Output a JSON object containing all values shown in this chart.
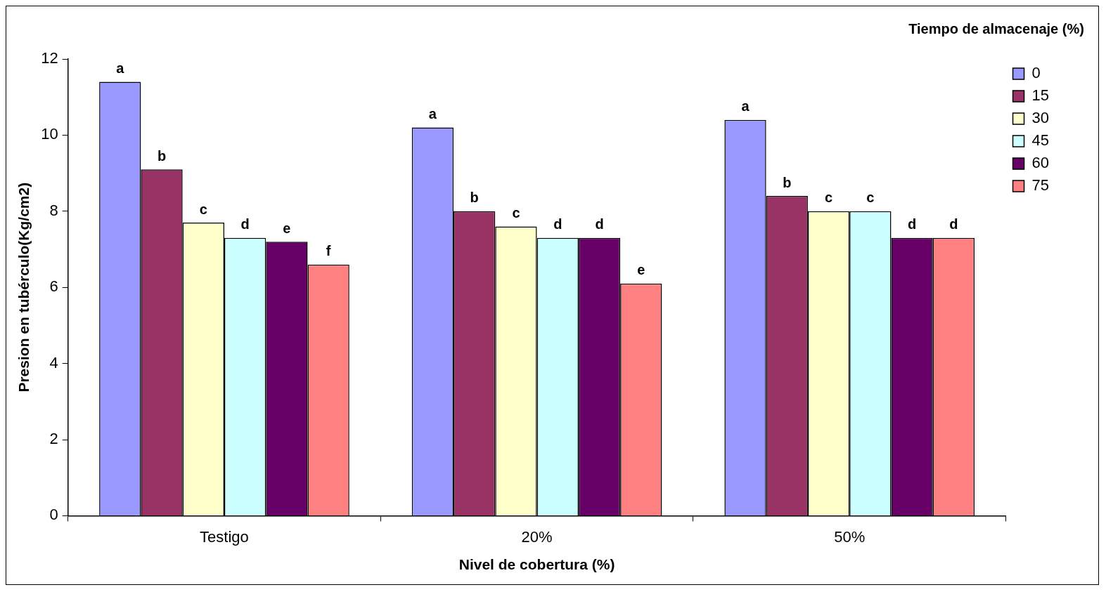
{
  "chart_data": {
    "type": "bar",
    "xlabel": "Nivel de cobertura (%)",
    "ylabel": "Presion en tubérculo(Kg/cm2)",
    "legend_title": "Tiempo de almacenaje (%)",
    "legend": "top right",
    "grid": false,
    "categories": [
      "Testigo",
      "20%",
      "50%"
    ],
    "ylim": [
      0,
      12
    ],
    "yticks": [
      0,
      2,
      4,
      6,
      8,
      10,
      12
    ],
    "series": [
      {
        "name": "0",
        "color": "#9999ff",
        "values": [
          11.4,
          10.2,
          10.4
        ],
        "value_labels": [
          "a",
          "a",
          "a"
        ]
      },
      {
        "name": "15",
        "color": "#993366",
        "values": [
          9.1,
          8.0,
          8.4
        ],
        "value_labels": [
          "b",
          "b",
          "b"
        ]
      },
      {
        "name": "30",
        "color": "#ffffcc",
        "values": [
          7.7,
          7.6,
          8.0
        ],
        "value_labels": [
          "c",
          "c",
          "c"
        ]
      },
      {
        "name": "45",
        "color": "#ccffff",
        "values": [
          7.3,
          7.3,
          8.0
        ],
        "value_labels": [
          "d",
          "d",
          "c"
        ]
      },
      {
        "name": "60",
        "color": "#660066",
        "values": [
          7.2,
          7.3,
          7.3
        ],
        "value_labels": [
          "e",
          "d",
          "d"
        ]
      },
      {
        "name": "75",
        "color": "#ff8080",
        "values": [
          6.6,
          6.1,
          7.3
        ],
        "value_labels": [
          "f",
          "e",
          "d"
        ]
      }
    ]
  }
}
